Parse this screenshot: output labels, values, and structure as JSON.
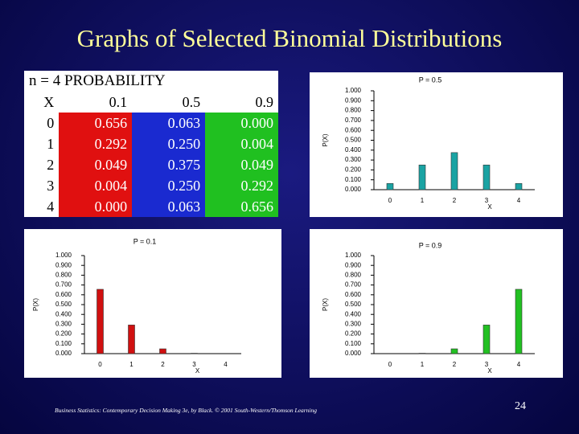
{
  "title": "Graphs of Selected Binomial Distributions",
  "table": {
    "caption": "n = 4 PROBABILITY",
    "columns": [
      "X",
      "0.1",
      "0.5",
      "0.9"
    ],
    "rows": [
      [
        "0",
        "0.656",
        "0.063",
        "0.000"
      ],
      [
        "1",
        "0.292",
        "0.250",
        "0.004"
      ],
      [
        "2",
        "0.049",
        "0.375",
        "0.049"
      ],
      [
        "3",
        "0.004",
        "0.250",
        "0.292"
      ],
      [
        "4",
        "0.000",
        "0.063",
        "0.656"
      ]
    ]
  },
  "chart_data": [
    {
      "type": "bar",
      "title": "P = 0.5",
      "x_label": "X",
      "y_label": "P(X)",
      "categories": [
        "0",
        "1",
        "2",
        "3",
        "4"
      ],
      "values": [
        0.063,
        0.25,
        0.375,
        0.25,
        0.063
      ],
      "color": "#1aa3a3",
      "ylim": [
        0,
        1
      ],
      "yticks": [
        {
          "value": 0,
          "label": "0.000"
        },
        {
          "value": 0.1,
          "label": "0.100"
        },
        {
          "value": 0.2,
          "label": "0.200"
        },
        {
          "value": 0.3,
          "label": "0.300"
        },
        {
          "value": 0.4,
          "label": "0.400"
        },
        {
          "value": 0.5,
          "label": "0.500"
        },
        {
          "value": 0.6,
          "label": "0.600"
        },
        {
          "value": 0.7,
          "label": "0.700"
        },
        {
          "value": 0.8,
          "label": "0.800"
        },
        {
          "value": 0.9,
          "label": "0.900"
        },
        {
          "value": 1,
          "label": "1.000"
        }
      ]
    },
    {
      "type": "bar",
      "title": "P = 0.1",
      "x_label": "X",
      "y_label": "P(X)",
      "categories": [
        "0",
        "1",
        "2",
        "3",
        "4"
      ],
      "values": [
        0.656,
        0.292,
        0.049,
        0.004,
        0.0
      ],
      "color": "#d01010",
      "ylim": [
        0,
        1
      ],
      "yticks": [
        {
          "value": 0,
          "label": "0.000"
        },
        {
          "value": 0.1,
          "label": "0.100"
        },
        {
          "value": 0.2,
          "label": "0.200"
        },
        {
          "value": 0.3,
          "label": "0.300"
        },
        {
          "value": 0.4,
          "label": "0.400"
        },
        {
          "value": 0.5,
          "label": "0.500"
        },
        {
          "value": 0.6,
          "label": "0.600"
        },
        {
          "value": 0.7,
          "label": "0.700"
        },
        {
          "value": 0.8,
          "label": "0.800"
        },
        {
          "value": 0.9,
          "label": "0.900"
        },
        {
          "value": 1,
          "label": "1.000"
        }
      ]
    },
    {
      "type": "bar",
      "title": "P = 0.9",
      "x_label": "X",
      "y_label": "P(X)",
      "categories": [
        "0",
        "1",
        "2",
        "3",
        "4"
      ],
      "values": [
        0.0,
        0.004,
        0.049,
        0.292,
        0.656
      ],
      "color": "#22c022",
      "ylim": [
        0,
        1
      ],
      "yticks": [
        {
          "value": 0,
          "label": "0.000"
        },
        {
          "value": 0.1,
          "label": "0.100"
        },
        {
          "value": 0.2,
          "label": "0.200"
        },
        {
          "value": 0.3,
          "label": "0.300"
        },
        {
          "value": 0.4,
          "label": "0.400"
        },
        {
          "value": 0.5,
          "label": "0.500"
        },
        {
          "value": 0.6,
          "label": "0.600"
        },
        {
          "value": 0.7,
          "label": "0.700"
        },
        {
          "value": 0.8,
          "label": "0.800"
        },
        {
          "value": 0.9,
          "label": "0.900"
        },
        {
          "value": 1,
          "label": "1.000"
        }
      ]
    }
  ],
  "footer": "Business Statistics: Contemporary Decision Making 3e, by Black. © 2001 South-Western/Thomson Learning",
  "page_number": "24"
}
